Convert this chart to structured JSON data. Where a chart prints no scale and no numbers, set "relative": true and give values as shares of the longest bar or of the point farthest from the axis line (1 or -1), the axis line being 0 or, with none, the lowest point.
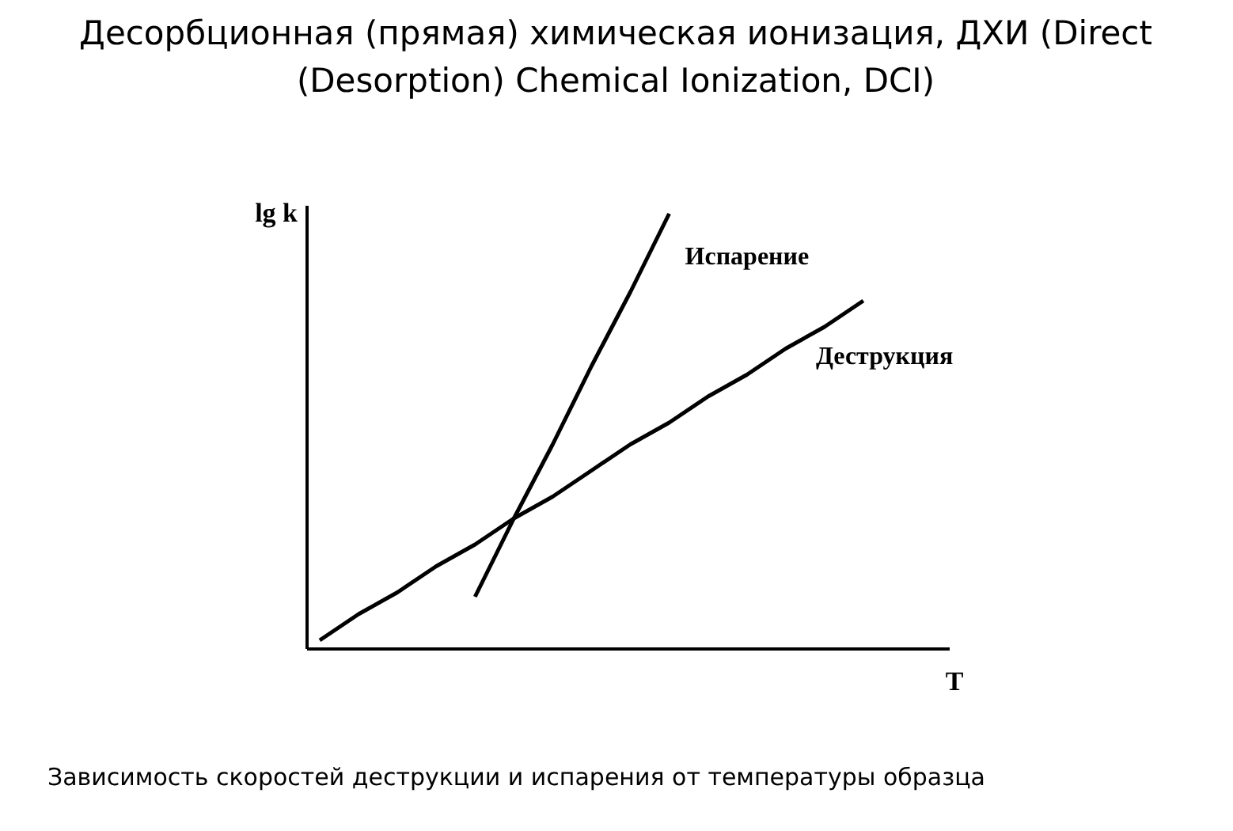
{
  "chart_data": {
    "type": "line",
    "relative": true,
    "title": "Десорбционная (прямая) химическая ионизация, ДХИ (Direct (Desorption) Chemical Ionization, DCI)",
    "xlabel": "T",
    "ylabel": "lg k",
    "categories": [
      null,
      null,
      null,
      null,
      null,
      null,
      null,
      null,
      null,
      null,
      null,
      null,
      null,
      null,
      null,
      null,
      null
    ],
    "series": [
      {
        "name": "Испарение",
        "color": "#000000",
        "values": [
          null,
          null,
          null,
          null,
          0.12,
          0.3,
          0.47,
          0.65,
          0.82,
          1,
          null,
          null,
          null,
          null,
          null,
          null,
          null
        ]
      },
      {
        "name": "Деструкция",
        "color": "#000000",
        "values": [
          0.02,
          0.08,
          0.13,
          0.19,
          0.24,
          0.3,
          0.35,
          0.41,
          0.47,
          0.52,
          0.58,
          0.63,
          0.69,
          0.74,
          0.8,
          null,
          null
        ]
      }
    ],
    "marker": "none",
    "line_style": "solid",
    "annotations": [
      "Зависимость скоростей деструкции и испарения от температуры образца"
    ]
  }
}
